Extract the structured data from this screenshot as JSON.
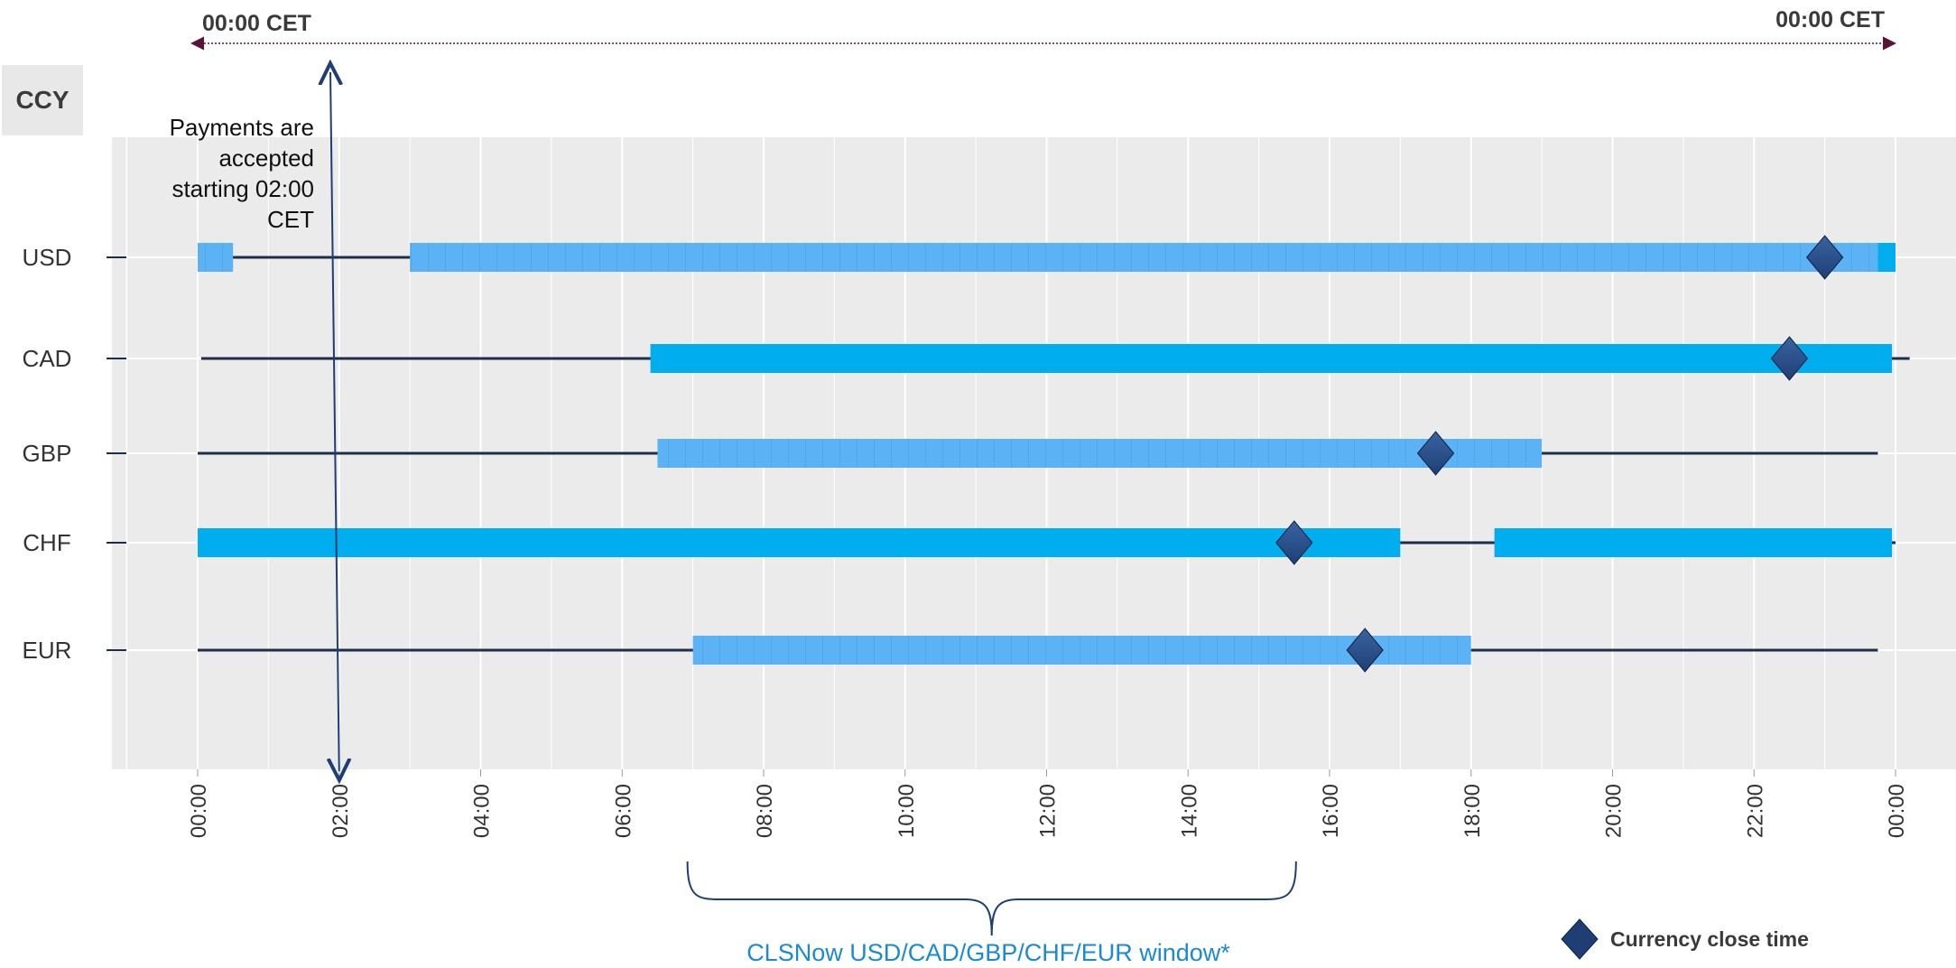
{
  "header": {
    "left_time": "00:00 CET",
    "right_time": "00:00 CET"
  },
  "ccy_header": "CCY",
  "note": {
    "lines": [
      "Payments are",
      "accepted",
      "starting 02:00",
      "CET"
    ]
  },
  "window_label": "CLSNow USD/CAD/GBP/CHF/EUR window*",
  "legend": {
    "label": "Currency close time"
  },
  "colors": {
    "plot_bg": "#ebebeb",
    "grid": "#ffffff",
    "bar_patterned": "#5bb3f5",
    "bar_solid": "#00aeef",
    "line": "#1b2f4d",
    "diamond": "#1f3f74",
    "header_arrow": "#5a1237",
    "note_arrow": "#1f3f74",
    "brace": "#1f3f74"
  },
  "chart_data": {
    "type": "gantt",
    "x_axis": {
      "unit": "hours (CET)",
      "range": [
        0,
        24
      ],
      "ticks": [
        "00:00",
        "02:00",
        "04:00",
        "06:00",
        "08:00",
        "10:00",
        "12:00",
        "14:00",
        "16:00",
        "18:00",
        "20:00",
        "22:00",
        "00:00"
      ]
    },
    "rows": [
      {
        "ccy": "USD",
        "line": [
          0,
          23.75
        ],
        "bars": [
          {
            "start": 0,
            "end": 0.5,
            "style": "patterned"
          },
          {
            "start": 3,
            "end": 23.75,
            "style": "patterned"
          },
          {
            "start": 23.75,
            "end": 24,
            "style": "solid"
          }
        ],
        "close": 23.0
      },
      {
        "ccy": "CAD",
        "line": [
          0.05,
          24.2
        ],
        "bars": [
          {
            "start": 6.4,
            "end": 23.95,
            "style": "solid"
          }
        ],
        "close": 22.5
      },
      {
        "ccy": "GBP",
        "line": [
          0,
          23.75
        ],
        "bars": [
          {
            "start": 6.5,
            "end": 19.0,
            "style": "patterned"
          }
        ],
        "close": 17.5
      },
      {
        "ccy": "CHF",
        "line": [
          0,
          24
        ],
        "bars": [
          {
            "start": 0,
            "end": 17.0,
            "style": "solid"
          },
          {
            "start": 18.33,
            "end": 23.95,
            "style": "solid"
          }
        ],
        "close": 15.5
      },
      {
        "ccy": "EUR",
        "line": [
          0,
          23.75
        ],
        "bars": [
          {
            "start": 7.0,
            "end": 18.0,
            "style": "patterned"
          }
        ],
        "close": 16.5
      }
    ],
    "payments_accepted_from": 2.0,
    "clsnow_window": [
      7.0,
      15.5
    ]
  }
}
